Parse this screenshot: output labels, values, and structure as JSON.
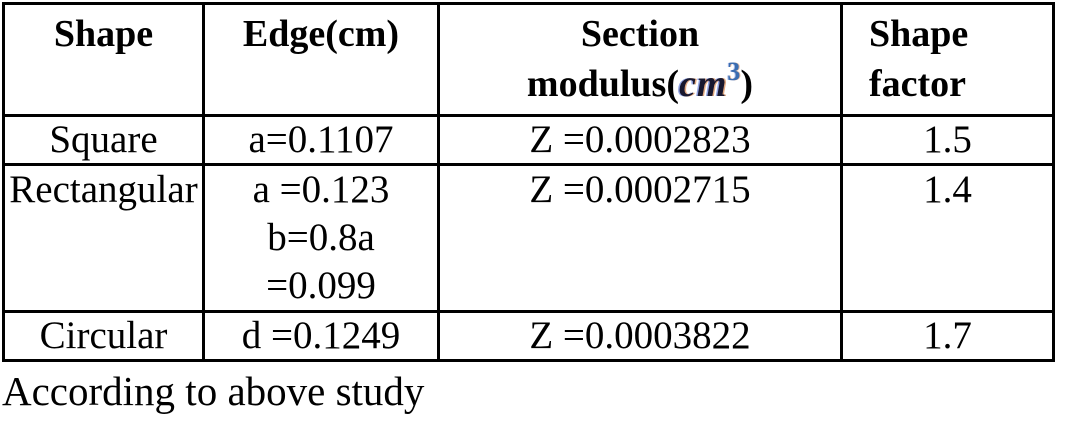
{
  "table": {
    "headers": {
      "shape": "Shape",
      "edge": "Edge(cm)",
      "section_line1": "Section",
      "section_line2_prefix": "modulus(",
      "section_unit": "cm",
      "section_sup": "3",
      "section_close": ")",
      "factor_line1": "Shape",
      "factor_line2": "factor"
    },
    "rows": [
      {
        "shape": "Square",
        "edge_lines": [
          "a=0.1107"
        ],
        "section_modulus": "Z =0.0002823",
        "shape_factor": "1.5"
      },
      {
        "shape": "Rectangular",
        "edge_lines": [
          "a =0.123",
          "b=0.8a",
          "=0.099"
        ],
        "section_modulus": "Z =0.0002715",
        "shape_factor": "1.4"
      },
      {
        "shape": "Circular",
        "edge_lines": [
          "d =0.1249"
        ],
        "section_modulus": "Z =0.0003822",
        "shape_factor": "1.7"
      }
    ]
  },
  "footer": {
    "note": "According to above study"
  },
  "colors": {
    "border": "#000000",
    "text": "#000000",
    "unit_text": "#18182e",
    "unit_sup": "#3a6db0"
  }
}
